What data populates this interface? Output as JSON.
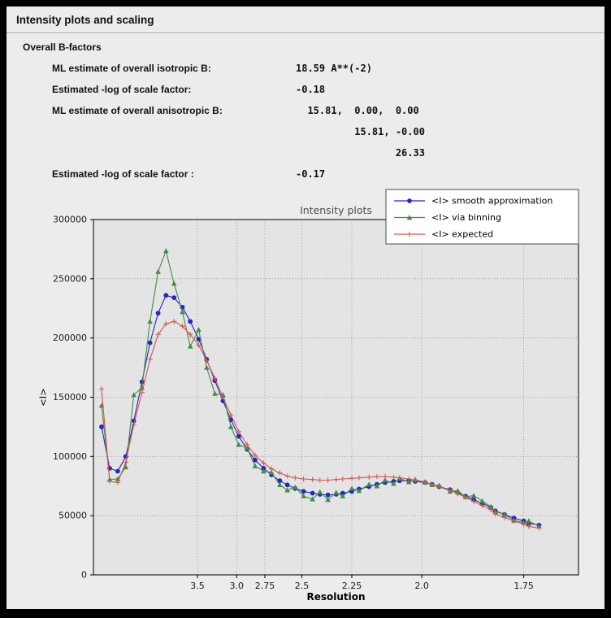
{
  "window": {
    "title": "Intensity plots and scaling"
  },
  "bfactors": {
    "heading": "Overall B-factors",
    "rows": [
      {
        "label": "ML estimate of overall isotropic B:",
        "value": "18.59 A**(-2)"
      },
      {
        "label": "Estimated -log of scale factor:",
        "value": "-0.18"
      },
      {
        "label": "ML estimate of overall anisotropic B:",
        "value": "  15.81,  0.00,  0.00"
      },
      {
        "label": "",
        "value": "          15.81, -0.00"
      },
      {
        "label": "",
        "value": "                 26.33"
      },
      {
        "label": "Estimated -log of scale factor :",
        "value": "-0.17"
      }
    ]
  },
  "chart_data": {
    "type": "line",
    "title": "Intensity plots",
    "xlabel": "Resolution",
    "ylabel": "<I>",
    "grid": "dotted",
    "legend_position": "top-right",
    "x_axis": {
      "scale": "inverse_d_squared",
      "tick_values": [
        3.5,
        3.0,
        2.75,
        2.5,
        2.25,
        2.0,
        1.75
      ],
      "tick_labels": [
        "3.5",
        "3.0",
        "2.75",
        "2.5",
        "2.25",
        "2.0",
        "1.75"
      ]
    },
    "y_axis": {
      "min": 0,
      "max": 300000,
      "tick_values": [
        0,
        50000,
        100000,
        150000,
        200000,
        250000,
        300000
      ],
      "tick_labels": [
        "0",
        "50000",
        "100000",
        "150000",
        "200000",
        "250000",
        "300000"
      ]
    },
    "x_resolution": [
      10.15,
      7.96,
      6.77,
      5.99,
      5.43,
      5.0,
      4.66,
      4.38,
      4.15,
      3.95,
      3.77,
      3.62,
      3.48,
      3.36,
      3.25,
      3.15,
      3.06,
      2.98,
      2.9,
      2.83,
      2.76,
      2.7,
      2.64,
      2.59,
      2.54,
      2.49,
      2.44,
      2.4,
      2.36,
      2.32,
      2.29,
      2.25,
      2.22,
      2.18,
      2.15,
      2.12,
      2.09,
      2.07,
      2.04,
      2.02,
      1.99,
      1.97,
      1.95,
      1.92,
      1.9,
      1.88,
      1.86,
      1.84,
      1.82,
      1.81,
      1.79,
      1.77,
      1.75,
      1.74,
      1.72
    ],
    "series": [
      {
        "name": "<I> smooth approximation",
        "color": "#2525cc",
        "marker": "circle",
        "values": [
          125000,
          90000,
          87500,
          100000,
          130000,
          163000,
          196000,
          221000,
          236000,
          234000,
          226000,
          214000,
          199000,
          182000,
          164000,
          147000,
          131000,
          117000,
          106000,
          97000,
          90000,
          84500,
          79500,
          76000,
          73000,
          70500,
          69000,
          68000,
          67500,
          68000,
          69000,
          70500,
          72500,
          74500,
          76500,
          78000,
          79000,
          79500,
          79500,
          79000,
          78000,
          76500,
          74500,
          72000,
          69500,
          66500,
          63500,
          60500,
          57000,
          54000,
          51000,
          48000,
          45500,
          43500,
          42000
        ]
      },
      {
        "name": "<I> via binning",
        "color": "#3f8f3f",
        "marker": "triangle",
        "values": [
          143000,
          80500,
          81000,
          91000,
          152000,
          158000,
          214000,
          256000,
          273500,
          246000,
          222000,
          193000,
          207000,
          175000,
          153000,
          152000,
          125000,
          110000,
          107000,
          92000,
          87500,
          86500,
          76000,
          71500,
          74000,
          66500,
          64000,
          70000,
          63500,
          69500,
          66500,
          73000,
          71000,
          76500,
          75000,
          80000,
          77000,
          81500,
          78500,
          80500,
          78000,
          76000,
          75500,
          70500,
          71000,
          66000,
          67000,
          62500,
          57500,
          53500,
          51000,
          46000,
          44000,
          45500,
          41000
        ]
      },
      {
        "name": "<I> expected",
        "color": "#d4564e",
        "marker": "plus",
        "values": [
          157000,
          79000,
          78000,
          95000,
          127000,
          154000,
          182000,
          203000,
          212000,
          214000,
          210000,
          203000,
          194000,
          181000,
          166000,
          150000,
          135000,
          121000,
          110000,
          101000,
          94500,
          89500,
          86000,
          83500,
          82000,
          81000,
          80500,
          80000,
          80000,
          80500,
          81000,
          81500,
          82000,
          82500,
          83000,
          83000,
          82500,
          82000,
          81000,
          80000,
          78500,
          76500,
          74000,
          71500,
          68500,
          65500,
          62000,
          58500,
          55000,
          51500,
          48500,
          45500,
          43000,
          41000,
          39500
        ]
      }
    ]
  }
}
